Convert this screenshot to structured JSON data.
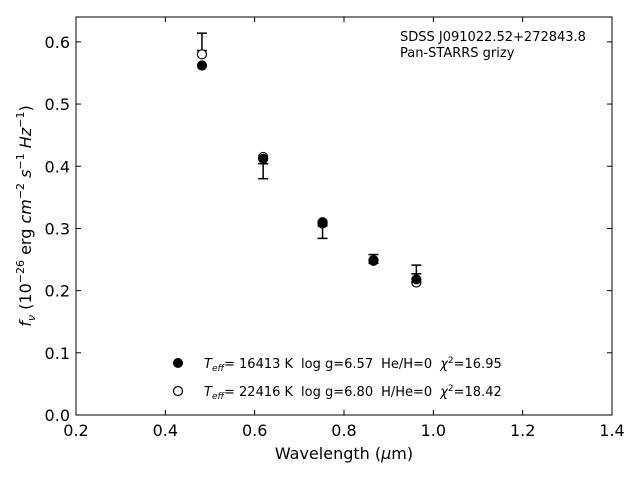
{
  "chart_data": {
    "type": "scatter",
    "xlabel": "Wavelength (μm)",
    "ylabel": "f_ν (10^−26 erg cm^−2 s^−1 Hz^−1)",
    "xlim": [
      0.2,
      1.4
    ],
    "ylim": [
      0.0,
      0.64
    ],
    "xticks": [
      0.2,
      0.4,
      0.6,
      0.8,
      1.0,
      1.2,
      1.4
    ],
    "yticks": [
      0.0,
      0.1,
      0.2,
      0.3,
      0.4,
      0.5,
      0.6
    ],
    "xtick_labels": [
      "0.2",
      "0.4",
      "0.6",
      "0.8",
      "1.0",
      "1.2",
      "1.4"
    ],
    "ytick_labels": [
      "0.0",
      "0.1",
      "0.2",
      "0.3",
      "0.4",
      "0.5",
      "0.6"
    ],
    "grid": false,
    "annotation_lines": [
      "SDSS J091022.52+272843.8",
      "Pan-STARRS grizy"
    ],
    "observed": {
      "x": [
        0.482,
        0.619,
        0.752,
        0.866,
        0.962
      ],
      "y": [
        0.6,
        0.392,
        0.294,
        0.251,
        0.234
      ],
      "yerr": [
        0.014,
        0.012,
        0.01,
        0.007,
        0.007
      ]
    },
    "series": [
      {
        "marker": "filled-circle",
        "x": [
          0.482,
          0.619,
          0.752,
          0.866,
          0.962
        ],
        "y": [
          0.562,
          0.412,
          0.31,
          0.249,
          0.218
        ],
        "legend": {
          "teff_label": "T_eff",
          "teff_value": "= 16413 K",
          "logg": "log g=6.57",
          "comp": "He/H=0",
          "chi_label": "χ²",
          "chi_value": "=16.95"
        }
      },
      {
        "marker": "open-circle",
        "x": [
          0.482,
          0.619,
          0.752,
          0.866,
          0.962
        ],
        "y": [
          0.58,
          0.415,
          0.308,
          0.248,
          0.213
        ],
        "legend": {
          "teff_label": "T_eff",
          "teff_value": "= 22416 K",
          "logg": "log g=6.80",
          "comp": "H/He=0",
          "chi_label": "χ²",
          "chi_value": "=18.42"
        }
      }
    ]
  }
}
